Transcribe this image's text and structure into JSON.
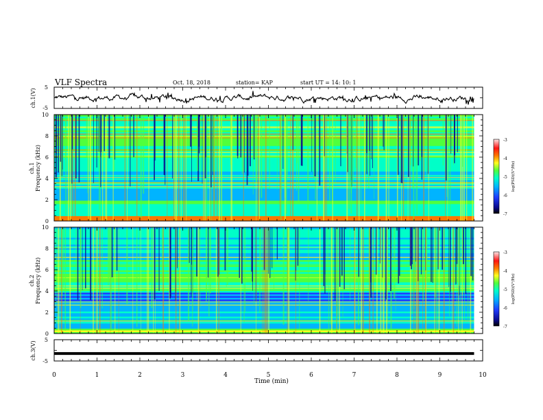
{
  "header": {
    "title": "VLF Spectra",
    "date": "Oct. 18, 2018",
    "station": "station= KAP",
    "start_time": "start  UT =   14: 10: 1"
  },
  "chart_data": [
    {
      "type": "line",
      "panel": "ch1-waveform",
      "ylabel": "ch.1(V)",
      "ylim": [
        -5,
        5
      ],
      "y_ticks": [
        "5",
        "-5"
      ],
      "xlim": [
        0,
        10
      ],
      "x_end": 9.8,
      "description_values": "noisy waveform fluctuating roughly between -3 V and +3 V"
    },
    {
      "type": "heatmap",
      "panel": "ch1-spectrogram",
      "ylabel": "ch.1\nFrequency (kHz)",
      "ylabel_line1": "ch.1",
      "ylabel_line2": "Frequency (kHz)",
      "ylim": [
        0,
        10
      ],
      "y_ticks": [
        "0",
        "2",
        "4",
        "6",
        "8",
        "10"
      ],
      "xlim": [
        0,
        10
      ],
      "x_end": 9.8,
      "colorbar": {
        "label": "log(PSD)(V²/Hz)",
        "range": [
          -7,
          -3
        ],
        "ticks": [
          "-3",
          "-4",
          "-5",
          "-6",
          "-7"
        ]
      }
    },
    {
      "type": "heatmap",
      "panel": "ch2-spectrogram",
      "ylabel": "ch.2\nFrequency (kHz)",
      "ylabel_line1": "ch.2",
      "ylabel_line2": "Frequency (kHz)",
      "ylim": [
        0,
        10
      ],
      "y_ticks": [
        "0",
        "2",
        "4",
        "6",
        "8",
        "10"
      ],
      "xlim": [
        0,
        10
      ],
      "x_end": 9.8,
      "colorbar": {
        "label": "log(PSD)(V²/Hz)",
        "range": [
          -7,
          -3
        ],
        "ticks": [
          "-3",
          "-4",
          "-5",
          "-6",
          "-7"
        ]
      }
    },
    {
      "type": "line",
      "panel": "ch3-waveform",
      "ylabel": "ch.3(V)",
      "ylim": [
        -5,
        5
      ],
      "y_ticks": [
        "5",
        "-5"
      ],
      "xlim": [
        0,
        10
      ],
      "x_end": 9.8,
      "constant_value": -1.5
    }
  ],
  "x_axis": {
    "label": "Time (min)",
    "ticks": [
      "0",
      "1",
      "2",
      "3",
      "4",
      "5",
      "6",
      "7",
      "8",
      "9",
      "10"
    ]
  },
  "colormap": [
    "#0a0a8c",
    "#1f3cff",
    "#00b4ff",
    "#00ffc8",
    "#50ff3c",
    "#ffff1e",
    "#ff7800",
    "#ff1414",
    "#ffd2d2"
  ]
}
